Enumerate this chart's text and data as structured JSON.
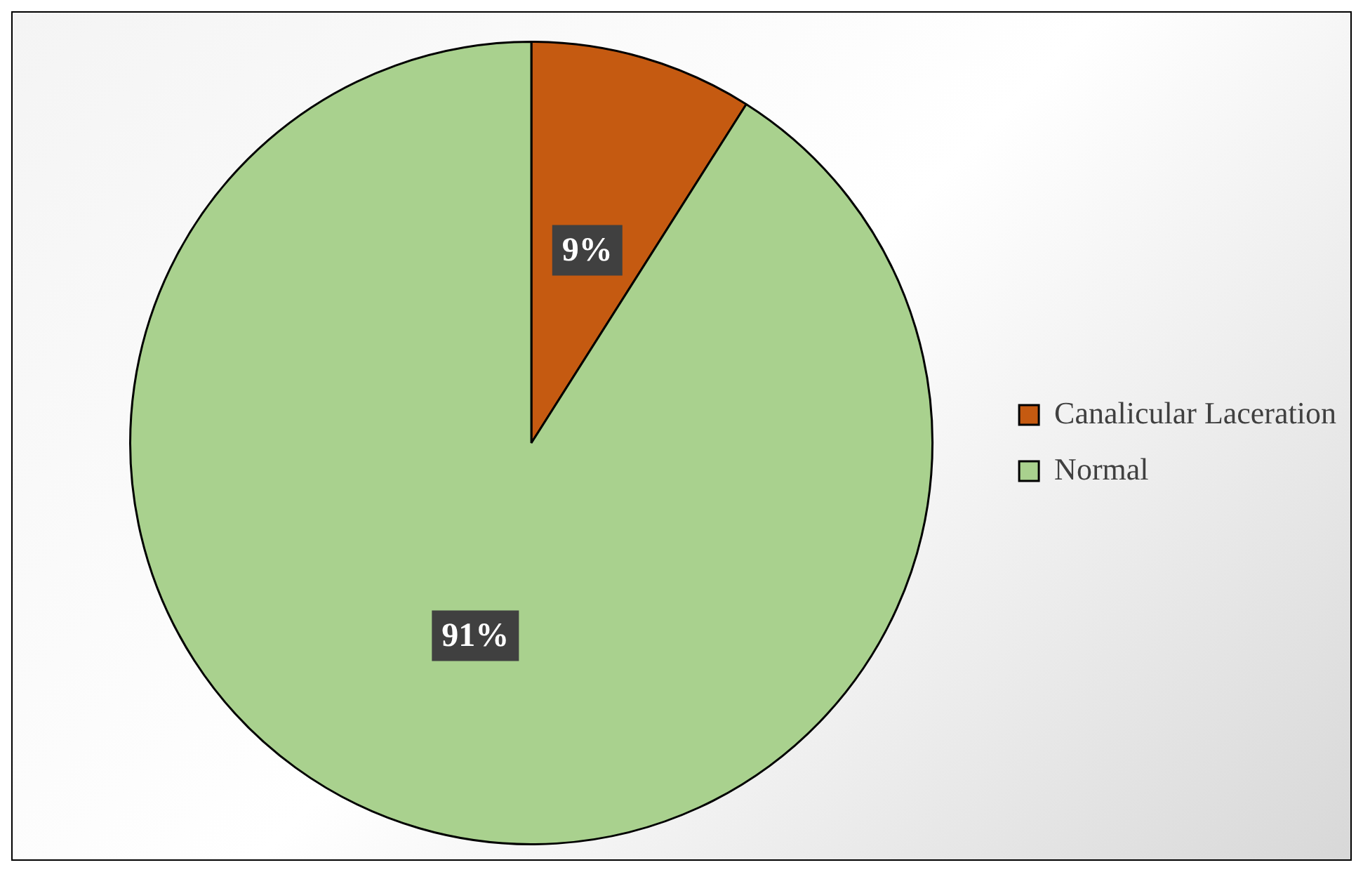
{
  "chart_data": {
    "type": "pie",
    "categories": [
      "Canalicular Laceration",
      "Normal"
    ],
    "values": [
      9,
      91
    ],
    "colors": [
      "#c55a11",
      "#a9d18e"
    ],
    "value_labels": [
      "9%",
      "91%"
    ],
    "legend": "right"
  }
}
